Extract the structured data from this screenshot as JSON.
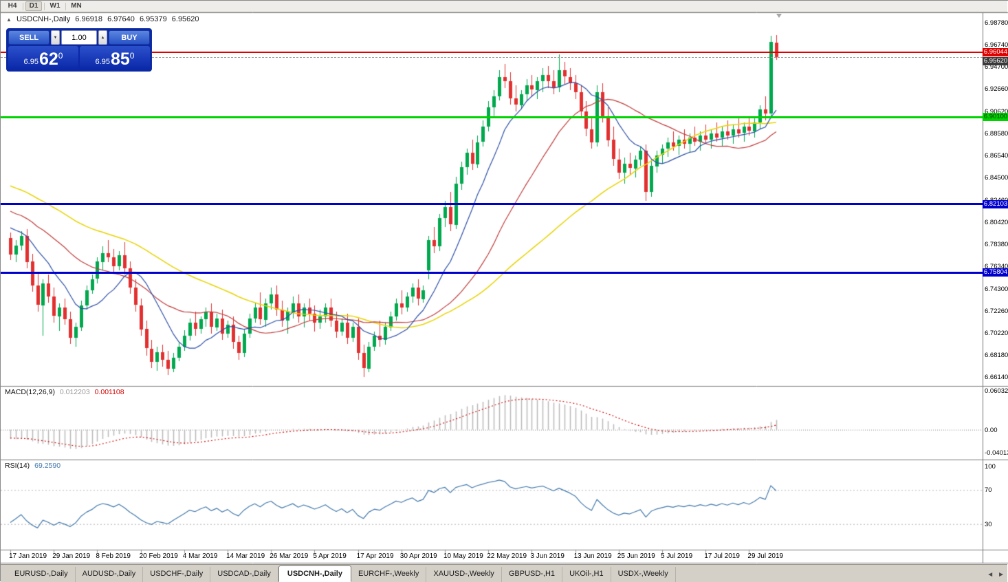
{
  "toolbar": {
    "periods": [
      "H4",
      "D1",
      "W1",
      "MN"
    ],
    "active_period": "D1"
  },
  "chart_header": {
    "symbol_period": "USDCNH-,Daily",
    "open": "6.96918",
    "high": "6.97640",
    "low": "6.95379",
    "close": "6.95620"
  },
  "trade_panel": {
    "sell_label": "SELL",
    "buy_label": "BUY",
    "volume": "1.00",
    "sell_price": {
      "base": "6.95",
      "pips": "62",
      "frac": "0"
    },
    "buy_price": {
      "base": "6.95",
      "pips": "85",
      "frac": "0"
    }
  },
  "price_axis": {
    "labels": [
      "6.98780",
      "6.96740",
      "6.94700",
      "6.92660",
      "6.90620",
      "6.88580",
      "6.86540",
      "6.84500",
      "6.82460",
      "6.80420",
      "6.78380",
      "6.76340",
      "6.74300",
      "6.72260",
      "6.70220",
      "6.68180",
      "6.66140"
    ],
    "tags": [
      {
        "text": "6.96044",
        "value": 6.96044,
        "bg": "#e00000",
        "fg": "#ffffff"
      },
      {
        "text": "6.95620",
        "value": 6.9562,
        "bg": "#3a3a3a",
        "fg": "#ffffff"
      },
      {
        "text": "6.90100",
        "value": 6.901,
        "bg": "#00d300",
        "fg": "#003300"
      },
      {
        "text": "6.82103",
        "value": 6.82103,
        "bg": "#0000cd",
        "fg": "#ffffff"
      },
      {
        "text": "6.75804",
        "value": 6.75804,
        "bg": "#0000cd",
        "fg": "#ffffff"
      }
    ]
  },
  "hlines": [
    {
      "value": 6.96044,
      "color": "#e00000",
      "thickness": 2,
      "style": "solid",
      "name": "resistance-line"
    },
    {
      "value": 6.9562,
      "color": "#9a9a9a",
      "thickness": 1,
      "style": "dashed",
      "name": "bid-price-line"
    },
    {
      "value": 6.901,
      "color": "#00d300",
      "thickness": 3,
      "style": "solid",
      "name": "support-line-green"
    },
    {
      "value": 6.82103,
      "color": "#0000cd",
      "thickness": 3,
      "style": "solid",
      "name": "support-line-blue-upper"
    },
    {
      "value": 6.75804,
      "color": "#0000cd",
      "thickness": 3,
      "style": "solid",
      "name": "support-line-blue-lower"
    }
  ],
  "chart_data": {
    "type": "candlestick",
    "symbol": "USDCNH",
    "timeframe": "Daily",
    "price_range": [
      6.6557,
      6.9967
    ],
    "bars_per_label": 8,
    "x_labels": [
      "17 Jan 2019",
      "29 Jan 2019",
      "8 Feb 2019",
      "20 Feb 2019",
      "4 Mar 2019",
      "14 Mar 2019",
      "26 Mar 2019",
      "5 Apr 2019",
      "17 Apr 2019",
      "30 Apr 2019",
      "10 May 2019",
      "22 May 2019",
      "3 Jun 2019",
      "13 Jun 2019",
      "25 Jun 2019",
      "5 Jul 2019",
      "17 Jul 2019",
      "29 Jul 2019"
    ],
    "up_color": "#00a84e",
    "down_color": "#e23030",
    "candles": [
      [
        6.79,
        6.795,
        6.77,
        6.775
      ],
      [
        6.775,
        6.788,
        6.768,
        6.783
      ],
      [
        6.783,
        6.796,
        6.778,
        6.792
      ],
      [
        6.792,
        6.798,
        6.762,
        6.768
      ],
      [
        6.768,
        6.775,
        6.74,
        6.746
      ],
      [
        6.746,
        6.758,
        6.722,
        6.728
      ],
      [
        6.728,
        6.752,
        6.7,
        6.748
      ],
      [
        6.748,
        6.756,
        6.73,
        6.736
      ],
      [
        6.736,
        6.744,
        6.712,
        6.718
      ],
      [
        6.718,
        6.73,
        6.705,
        6.726
      ],
      [
        6.726,
        6.734,
        6.71,
        6.715
      ],
      [
        6.715,
        6.722,
        6.692,
        6.698
      ],
      [
        6.698,
        6.712,
        6.69,
        6.708
      ],
      [
        6.708,
        6.732,
        6.704,
        6.728
      ],
      [
        6.728,
        6.746,
        6.724,
        6.742
      ],
      [
        6.742,
        6.756,
        6.738,
        6.752
      ],
      [
        6.752,
        6.772,
        6.748,
        6.768
      ],
      [
        6.768,
        6.782,
        6.76,
        6.776
      ],
      [
        6.776,
        6.788,
        6.768,
        6.772
      ],
      [
        6.772,
        6.78,
        6.758,
        6.764
      ],
      [
        6.764,
        6.778,
        6.76,
        6.774
      ],
      [
        6.774,
        6.786,
        6.756,
        6.762
      ],
      [
        6.762,
        6.768,
        6.738,
        6.744
      ],
      [
        6.744,
        6.752,
        6.722,
        6.728
      ],
      [
        6.728,
        6.734,
        6.7,
        6.706
      ],
      [
        6.706,
        6.714,
        6.682,
        6.688
      ],
      [
        6.688,
        6.696,
        6.67,
        6.676
      ],
      [
        6.676,
        6.69,
        6.668,
        6.685
      ],
      [
        6.685,
        6.692,
        6.672,
        6.678
      ],
      [
        6.678,
        6.686,
        6.664,
        6.67
      ],
      [
        6.67,
        6.684,
        6.666,
        6.68
      ],
      [
        6.68,
        6.694,
        6.676,
        6.69
      ],
      [
        6.69,
        6.705,
        6.686,
        6.7
      ],
      [
        6.7,
        6.716,
        6.696,
        6.712
      ],
      [
        6.712,
        6.722,
        6.7,
        6.706
      ],
      [
        6.706,
        6.718,
        6.702,
        6.715
      ],
      [
        6.715,
        6.726,
        6.708,
        6.722
      ],
      [
        6.722,
        6.73,
        6.702,
        6.708
      ],
      [
        6.708,
        6.72,
        6.704,
        6.716
      ],
      [
        6.716,
        6.724,
        6.696,
        6.702
      ],
      [
        6.702,
        6.714,
        6.698,
        6.71
      ],
      [
        6.71,
        6.718,
        6.688,
        6.694
      ],
      [
        6.694,
        6.7,
        6.678,
        6.684
      ],
      [
        6.684,
        6.706,
        6.68,
        6.702
      ],
      [
        6.702,
        6.72,
        6.698,
        6.716
      ],
      [
        6.716,
        6.73,
        6.712,
        6.726
      ],
      [
        6.726,
        6.74,
        6.71,
        6.715
      ],
      [
        6.715,
        6.734,
        6.708,
        6.73
      ],
      [
        6.73,
        6.744,
        6.724,
        6.738
      ],
      [
        6.738,
        6.746,
        6.718,
        6.724
      ],
      [
        6.724,
        6.732,
        6.708,
        6.714
      ],
      [
        6.714,
        6.726,
        6.702,
        6.722
      ],
      [
        6.722,
        6.736,
        6.716,
        6.73
      ],
      [
        6.73,
        6.738,
        6.712,
        6.718
      ],
      [
        6.718,
        6.73,
        6.708,
        6.726
      ],
      [
        6.726,
        6.734,
        6.714,
        6.72
      ],
      [
        6.72,
        6.728,
        6.704,
        6.712
      ],
      [
        6.712,
        6.724,
        6.706,
        6.718
      ],
      [
        6.718,
        6.73,
        6.712,
        6.726
      ],
      [
        6.726,
        6.734,
        6.708,
        6.714
      ],
      [
        6.714,
        6.722,
        6.698,
        6.704
      ],
      [
        6.704,
        6.716,
        6.7,
        6.712
      ],
      [
        6.712,
        6.72,
        6.692,
        6.698
      ],
      [
        6.698,
        6.712,
        6.694,
        6.708
      ],
      [
        6.708,
        6.716,
        6.678,
        6.684
      ],
      [
        6.684,
        6.692,
        6.662,
        6.67
      ],
      [
        6.67,
        6.694,
        6.666,
        6.69
      ],
      [
        6.69,
        6.704,
        6.686,
        6.7
      ],
      [
        6.7,
        6.714,
        6.69,
        6.696
      ],
      [
        6.696,
        6.712,
        6.692,
        6.708
      ],
      [
        6.708,
        6.722,
        6.704,
        6.718
      ],
      [
        6.718,
        6.734,
        6.714,
        6.73
      ],
      [
        6.73,
        6.742,
        6.72,
        6.726
      ],
      [
        6.726,
        6.74,
        6.722,
        6.736
      ],
      [
        6.736,
        6.748,
        6.73,
        6.744
      ],
      [
        6.744,
        6.752,
        6.728,
        6.734
      ],
      [
        6.734,
        6.746,
        6.73,
        6.742
      ],
      [
        6.76,
        6.792,
        6.752,
        6.788
      ],
      [
        6.788,
        6.8,
        6.776,
        6.782
      ],
      [
        6.782,
        6.812,
        6.778,
        6.808
      ],
      [
        6.808,
        6.824,
        6.8,
        6.818
      ],
      [
        6.818,
        6.832,
        6.796,
        6.802
      ],
      [
        6.802,
        6.846,
        6.798,
        6.84
      ],
      [
        6.84,
        6.86,
        6.834,
        6.855
      ],
      [
        6.855,
        6.872,
        6.848,
        6.868
      ],
      [
        6.868,
        6.88,
        6.852,
        6.858
      ],
      [
        6.858,
        6.884,
        6.854,
        6.878
      ],
      [
        6.878,
        6.898,
        6.874,
        6.892
      ],
      [
        6.892,
        6.916,
        6.888,
        6.91
      ],
      [
        6.91,
        6.926,
        6.902,
        6.92
      ],
      [
        6.92,
        6.944,
        6.916,
        6.938
      ],
      [
        6.938,
        6.95,
        6.928,
        6.934
      ],
      [
        6.934,
        6.942,
        6.912,
        6.918
      ],
      [
        6.918,
        6.93,
        6.906,
        6.912
      ],
      [
        6.912,
        6.926,
        6.908,
        6.922
      ],
      [
        6.922,
        6.936,
        6.916,
        6.93
      ],
      [
        6.93,
        6.94,
        6.92,
        6.926
      ],
      [
        6.926,
        6.938,
        6.918,
        6.934
      ],
      [
        6.934,
        6.946,
        6.924,
        6.94
      ],
      [
        6.94,
        6.948,
        6.928,
        6.934
      ],
      [
        6.934,
        6.944,
        6.922,
        6.928
      ],
      [
        6.928,
        6.959,
        6.924,
        6.944
      ],
      [
        6.944,
        6.952,
        6.932,
        6.938
      ],
      [
        6.938,
        6.946,
        6.926,
        6.932
      ],
      [
        6.932,
        6.94,
        6.918,
        6.924
      ],
      [
        6.924,
        6.93,
        6.9,
        6.906
      ],
      [
        6.906,
        6.916,
        6.884,
        6.89
      ],
      [
        6.89,
        6.9,
        6.872,
        6.878
      ],
      [
        6.878,
        6.93,
        6.874,
        6.924
      ],
      [
        6.924,
        6.932,
        6.896,
        6.902
      ],
      [
        6.902,
        6.91,
        6.874,
        6.88
      ],
      [
        6.88,
        6.892,
        6.856,
        6.862
      ],
      [
        6.862,
        6.872,
        6.844,
        6.85
      ],
      [
        6.85,
        6.864,
        6.84,
        6.858
      ],
      [
        6.858,
        6.868,
        6.848,
        6.854
      ],
      [
        6.854,
        6.866,
        6.846,
        6.862
      ],
      [
        6.862,
        6.874,
        6.856,
        6.87
      ],
      [
        6.87,
        6.876,
        6.824,
        6.832
      ],
      [
        6.832,
        6.862,
        6.828,
        6.856
      ],
      [
        6.856,
        6.87,
        6.85,
        6.866
      ],
      [
        6.866,
        6.876,
        6.858,
        6.872
      ],
      [
        6.872,
        6.882,
        6.864,
        6.878
      ],
      [
        6.878,
        6.888,
        6.87,
        6.874
      ],
      [
        6.874,
        6.884,
        6.866,
        6.88
      ],
      [
        6.88,
        6.89,
        6.872,
        6.876
      ],
      [
        6.876,
        6.886,
        6.868,
        6.882
      ],
      [
        6.882,
        6.892,
        6.874,
        6.878
      ],
      [
        6.878,
        6.888,
        6.87,
        6.884
      ],
      [
        6.884,
        6.894,
        6.876,
        6.88
      ],
      [
        6.88,
        6.89,
        6.872,
        6.886
      ],
      [
        6.886,
        6.896,
        6.878,
        6.882
      ],
      [
        6.882,
        6.892,
        6.874,
        6.888
      ],
      [
        6.888,
        6.898,
        6.88,
        6.884
      ],
      [
        6.884,
        6.894,
        6.876,
        6.89
      ],
      [
        6.89,
        6.9,
        6.882,
        6.886
      ],
      [
        6.886,
        6.896,
        6.878,
        6.892
      ],
      [
        6.892,
        6.902,
        6.884,
        6.888
      ],
      [
        6.888,
        6.9,
        6.882,
        6.896
      ],
      [
        6.896,
        6.912,
        6.89,
        6.908
      ],
      [
        6.908,
        6.92,
        6.898,
        6.904
      ],
      [
        6.904,
        6.976,
        6.9,
        6.97
      ],
      [
        6.96918,
        6.9764,
        6.95379,
        6.9562
      ]
    ],
    "moving_averages": [
      {
        "period": 50,
        "color": "#e8d400",
        "width": 1.5
      },
      {
        "period": 25,
        "color": "#c23b3b",
        "width": 1.2
      },
      {
        "period": 10,
        "color": "#2b4ea8",
        "width": 1.2
      }
    ],
    "ma_seed": {
      "from": 6.885,
      "to": 6.795,
      "bars": 50,
      "zigzag": 0.004
    },
    "macd": {
      "label": "MACD(12,26,9)",
      "value_main": "0.012203",
      "value_signal": "0.001108",
      "fast": 12,
      "slow": 26,
      "signal": 9,
      "range": [
        -0.040135,
        0.060329
      ],
      "axis_labels": [
        "0.060329",
        "0.00",
        "-0.040135"
      ],
      "histogram_color": "#b9b9b9",
      "signal_color": "#d40000"
    },
    "rsi": {
      "label": "RSI(14)",
      "value": "69.2590",
      "period": 14,
      "range": [
        0,
        100
      ],
      "levels": [
        70,
        30
      ],
      "axis_labels": [
        "100",
        "70",
        "30"
      ],
      "line_color": "#4279ad"
    }
  },
  "tabs": {
    "items": [
      {
        "label": "EURUSD-,Daily",
        "active": false
      },
      {
        "label": "AUDUSD-,Daily",
        "active": false
      },
      {
        "label": "USDCHF-,Daily",
        "active": false
      },
      {
        "label": "USDCAD-,Daily",
        "active": false
      },
      {
        "label": "USDCNH-,Daily",
        "active": true
      },
      {
        "label": "EURCHF-,Weekly",
        "active": false
      },
      {
        "label": "XAUUSD-,Weekly",
        "active": false
      },
      {
        "label": "GBPUSD-,H1",
        "active": false
      },
      {
        "label": "UKOil-,H1",
        "active": false
      },
      {
        "label": "USDX-,Weekly",
        "active": false
      }
    ],
    "scroll_left": "◄",
    "scroll_right": "►"
  }
}
